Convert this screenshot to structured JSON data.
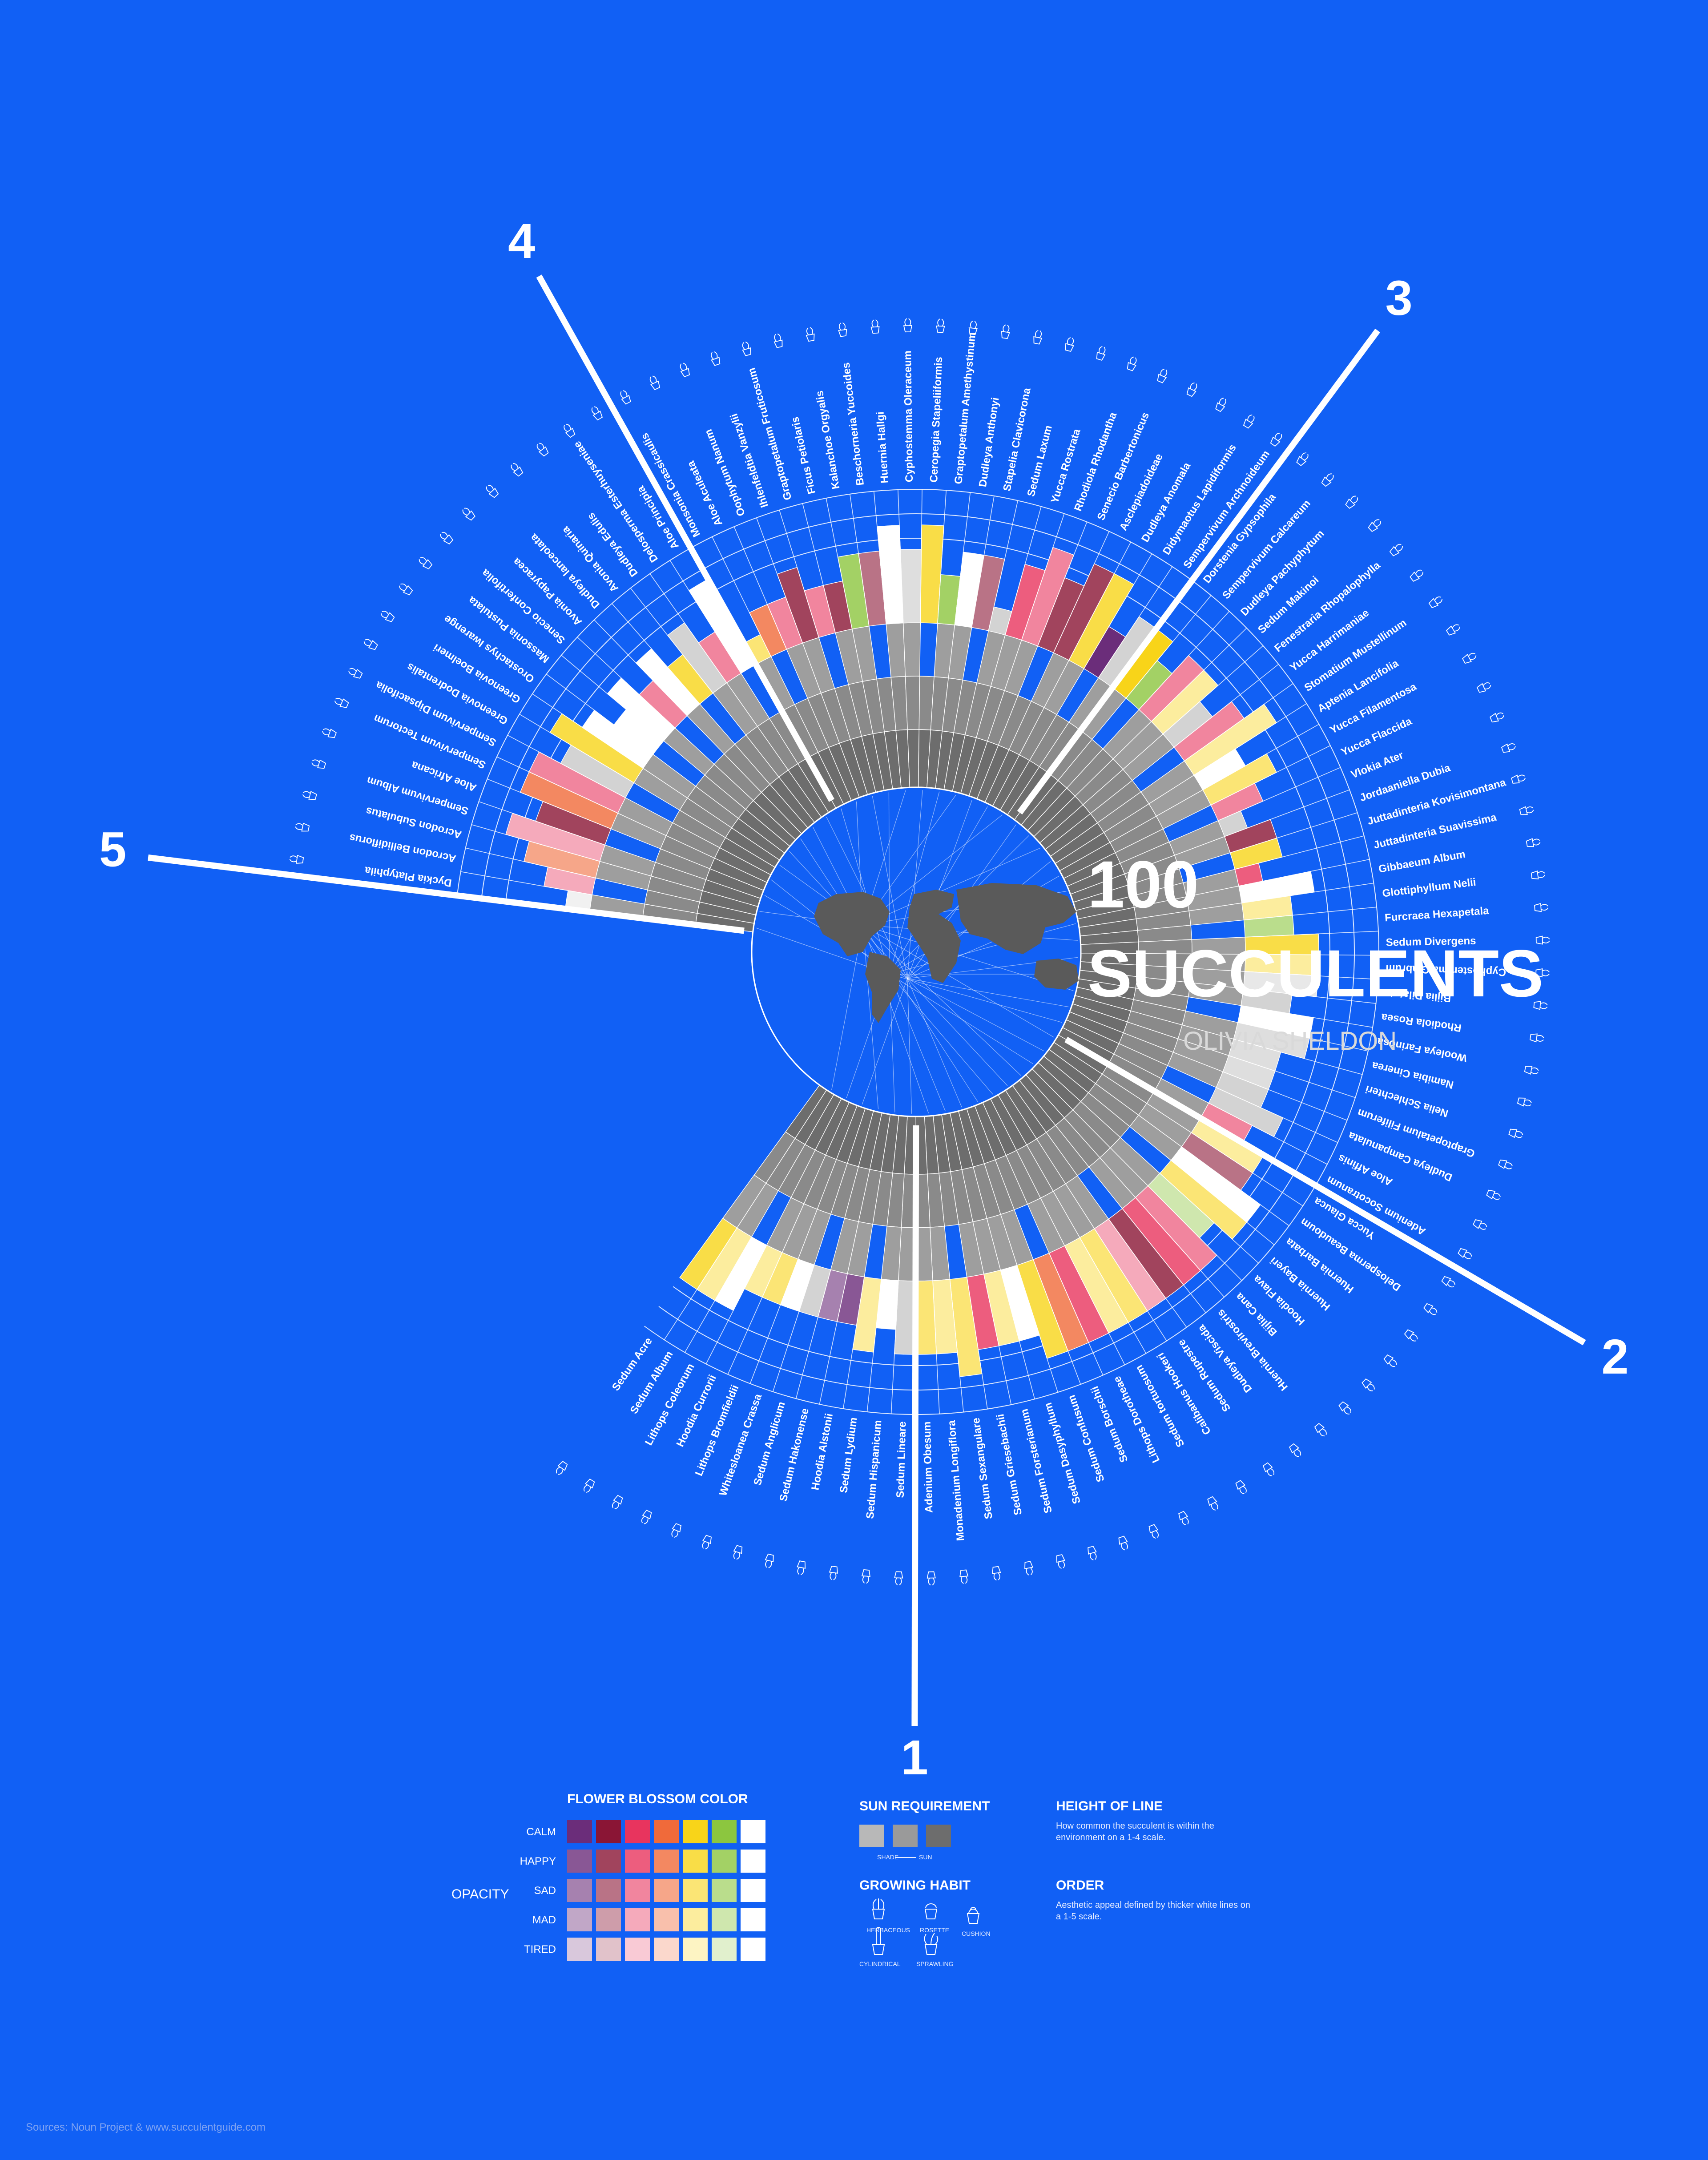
{
  "title": {
    "line1": "100",
    "line2": "SUCCULENTS",
    "author": "OLIVIA SHELDON"
  },
  "colors": {
    "background": "#1160f5",
    "sun_shade": "#b8b8b8",
    "sun_mid": "#9a9a9a",
    "sun_full": "#6d6d6d",
    "blossom": {
      "purple": "#6b2d7a",
      "maroon": "#8a1535",
      "pink": "#e8345e",
      "orange": "#f06a3a",
      "yellow": "#f8d419",
      "green": "#8cc63f",
      "white": "#ffffff",
      "gray": "#c8c8c8"
    }
  },
  "chart_data": {
    "type": "radial-bar",
    "title": "100 SUCCULENTS",
    "encoding": {
      "sun": "inner ring segment count 1-3 (shade to sun)",
      "height": "how common the succulent is, 1-4 scale",
      "blossom": "flower blossom color and mood opacity",
      "order": "aesthetic appeal 1-5, separated by thicker white lines"
    },
    "order_labels": [
      "5",
      "4",
      "3",
      "2",
      "1"
    ],
    "group_starts": {
      "5": 0,
      "4": 18,
      "3": 40,
      "2": 68,
      "1": 88
    },
    "names": [
      "Dyckia Platyphila",
      "Acrodon Bellidiflorus",
      "Acrodon Subulatus",
      "Sempervivum Album",
      "Aloe Africana",
      "Sempervivum Tectorum",
      "Sempervivum Dipsacifolia",
      "Greenovia Dodrentalis",
      "Greenovia Boelmeri",
      "Orostachys Iwarenge",
      "Massonia Pustulata",
      "Senecio Confertifolia",
      "Avonia Papyracea",
      "Dudleya lanceolata",
      "Avonia Quinaria",
      "Dudleya Edulis",
      "Delosperma Esterhuyseniae",
      "Aloe Principia",
      "Monsonia Crassicaulis",
      "Aloe Aculeata",
      "Oophytum Nanum",
      "Ihlenfeldtia Vanzylii",
      "Graptopetalum Fruticosum",
      "Ficus Petiolaris",
      "Kalanchoe Orgyalis",
      "Beschorneria Yuccoides",
      "Huernia Hallgi",
      "Cyphostemma Oleraceum",
      "Ceropegia Stapeliiformis",
      "Graptopetalum Amethystinum",
      "Dudleya Anthonyi",
      "Stapelia Clavicorona",
      "Sedum Laxum",
      "Yucca Rostrata",
      "Rhodiola Rhodantha",
      "Senecio Barbertonicus",
      "Asclepiadoideae",
      "Dudleya Anomala",
      "Didymaotus Lapidiformis",
      "Sempervivum Archnoideum",
      "Dorstenia Gypsophila",
      "Sempervivum Calcareum",
      "Dudleya Pachyphytum",
      "Sedum Makinoi",
      "Fenestraria Rhopalophylla",
      "Yucca Harrimaniae",
      "Stomatium Mustellinum",
      "Aptenia Lancifolia",
      "Yucca Filamentosa",
      "Yucca Flaccida",
      "Vlokia Ater",
      "Jordaaniella Dubia",
      "Juttadinteria Kovisimontana",
      "Juttadinteria Suavissima",
      "Gibbaeum Album",
      "Glottiphyllum Nelii",
      "Furcraea Hexapetala",
      "Sedum Divergens",
      "Cyphostemma Glabrum",
      "Bijlia Dilatata",
      "Rhodiola Rosea",
      "Wooleya Farinosa",
      "Namibia Cinerea",
      "Nelia Schlechteri",
      "Graptopetalum Filiferum",
      "Dudleya Campanulata",
      "Aloe Affinis",
      "Adenium Socotranum",
      "Yucca Glauca",
      "Delosperma Beaudoum",
      "Huernia Barbata",
      "Huernia Bayeri",
      "Hoodia Flava",
      "Bijlia Cana",
      "Huernia Brevirostris",
      "Dudleya Viscida",
      "Sedum Rupestre",
      "Calibanus Hookeri",
      "Sedum tortuosum",
      "Lithops Dorotheae",
      "Sedum Borschii",
      "Sedum Confusum",
      "Sedum Dasyphyllum",
      "Sedum Forsterianum",
      "Sedum Griesebachii",
      "Sedum Sexangulare",
      "Monadenium Longiflora",
      "Adenium Obesum",
      "Sedum Lineare",
      "Sedum Hispanicum",
      "Sedum Lydium",
      "Hoodia Alstonii",
      "Sedum Hakonense",
      "Sedum Anglicum",
      "Whitesloanea Crassa",
      "Lithops Bromfieldii",
      "Hoodia Currorii",
      "Lithops Coleorum",
      "Sedum Album",
      "Sedum Acre"
    ],
    "sun": [
      3,
      2,
      3,
      3,
      2,
      3,
      3,
      2,
      3,
      3,
      2,
      3,
      2,
      3,
      2,
      3,
      3,
      2,
      3,
      2,
      3,
      3,
      2,
      3,
      3,
      2,
      3,
      3,
      2,
      3,
      3,
      2,
      3,
      3,
      3,
      2,
      3,
      3,
      2,
      3,
      3,
      2,
      3,
      3,
      3,
      2,
      3,
      3,
      3,
      2,
      3,
      3,
      2,
      3,
      3,
      3,
      2,
      3,
      3,
      3,
      3,
      2,
      3,
      3,
      3,
      3,
      2,
      3,
      3,
      3,
      3,
      2,
      3,
      3,
      3,
      2,
      3,
      3,
      3,
      3,
      2,
      3,
      3,
      3,
      3,
      2,
      3,
      3,
      3,
      3,
      2,
      3,
      3,
      2,
      3,
      3,
      3,
      2,
      3,
      3
    ],
    "height": [
      1,
      2,
      3,
      4,
      3,
      4,
      4,
      3,
      4,
      3,
      2,
      3,
      2,
      3,
      2,
      3,
      2,
      4,
      1,
      2,
      2,
      3,
      2,
      2,
      3,
      3,
      4,
      3,
      4,
      2,
      3,
      3,
      1,
      3,
      4,
      3,
      4,
      4,
      2,
      3,
      3,
      2,
      3,
      3,
      2,
      3,
      4,
      2,
      3,
      2,
      1,
      2,
      2,
      1,
      3,
      2,
      2,
      3,
      3,
      3,
      2,
      3,
      3,
      2,
      2,
      2,
      3,
      2,
      3,
      3,
      4,
      4,
      3,
      4,
      4,
      4,
      4,
      4,
      4,
      4,
      4,
      4,
      3,
      3,
      3,
      4,
      3,
      3,
      3,
      2,
      3,
      2,
      2,
      2,
      2,
      2,
      2,
      3,
      3,
      3
    ],
    "blossom": [
      "gray",
      "pink",
      "orange",
      "pink",
      "maroon",
      "orange",
      "pink",
      "gray",
      "yellow",
      "white",
      "white",
      "white",
      "pink",
      "white",
      "yellow",
      "gray",
      "pink",
      "white",
      "yellow",
      "orange",
      "pink",
      "maroon",
      "pink",
      "maroon",
      "green",
      "maroon",
      "white",
      "gray",
      "yellow",
      "green",
      "white",
      "maroon",
      "gray",
      "pink",
      "pink",
      "maroon",
      "maroon",
      "yellow",
      "purple",
      "gray",
      "yellow",
      "green",
      "pink",
      "yellow",
      "gray",
      "pink",
      "yellow",
      "white",
      "yellow",
      "pink",
      "gray",
      "maroon",
      "yellow",
      "pink",
      "white",
      "yellow",
      "green",
      "yellow",
      "yellow",
      "gray",
      "gray",
      "white",
      "gray",
      "gray",
      "gray",
      "gray",
      "gray",
      "pink",
      "yellow",
      "maroon",
      "white",
      "yellow",
      "green",
      "pink",
      "pink",
      "maroon",
      "pink",
      "yellow",
      "yellow",
      "pink",
      "orange",
      "yellow",
      "white",
      "yellow",
      "pink",
      "yellow",
      "yellow",
      "yellow",
      "gray",
      "white",
      "yellow",
      "purple",
      "purple",
      "gray",
      "white",
      "yellow",
      "yellow",
      "white",
      "yellow",
      "yellow"
    ],
    "mood": [
      4,
      3,
      2,
      3,
      1,
      1,
      2,
      1,
      1,
      0,
      0,
      0,
      2,
      0,
      1,
      1,
      2,
      0,
      2,
      1,
      2,
      1,
      2,
      1,
      1,
      2,
      0,
      2,
      1,
      1,
      0,
      2,
      1,
      1,
      2,
      1,
      1,
      1,
      0,
      1,
      0,
      1,
      2,
      3,
      1,
      2,
      3,
      0,
      2,
      2,
      1,
      1,
      1,
      1,
      0,
      3,
      2,
      1,
      3,
      3,
      1,
      0,
      2,
      2,
      2,
      1,
      1,
      2,
      3,
      2,
      0,
      2,
      3,
      2,
      1,
      1,
      3,
      2,
      3,
      1,
      1,
      1,
      3,
      3,
      1,
      2,
      3,
      2,
      1,
      0,
      3,
      1,
      2,
      1,
      0,
      2,
      3,
      0,
      3,
      1
    ]
  },
  "legend": {
    "blossom_title": "FLOWER BLOSSOM COLOR",
    "opacity_label": "OPACITY",
    "rows": [
      "CALM",
      "HAPPY",
      "SAD",
      "MAD",
      "TIRED"
    ],
    "sun_title": "SUN REQUIREMENT",
    "sun_shade": "SHADE",
    "sun_sun": "SUN",
    "habit_title": "GROWING HABIT",
    "habits": [
      "HERBACEOUS",
      "ROSETTE",
      "CUSHION",
      "CYLINDRICAL",
      "SPRAWLING"
    ],
    "height_title": "HEIGHT OF LINE",
    "height_text": "How common the succulent is within the environment on a 1-4 scale.",
    "order_title": "ORDER",
    "order_text": "Aesthetic appeal defined by thicker white lines on a 1-5 scale."
  },
  "source": "Sources: Noun Project & www.succulentguide.com"
}
